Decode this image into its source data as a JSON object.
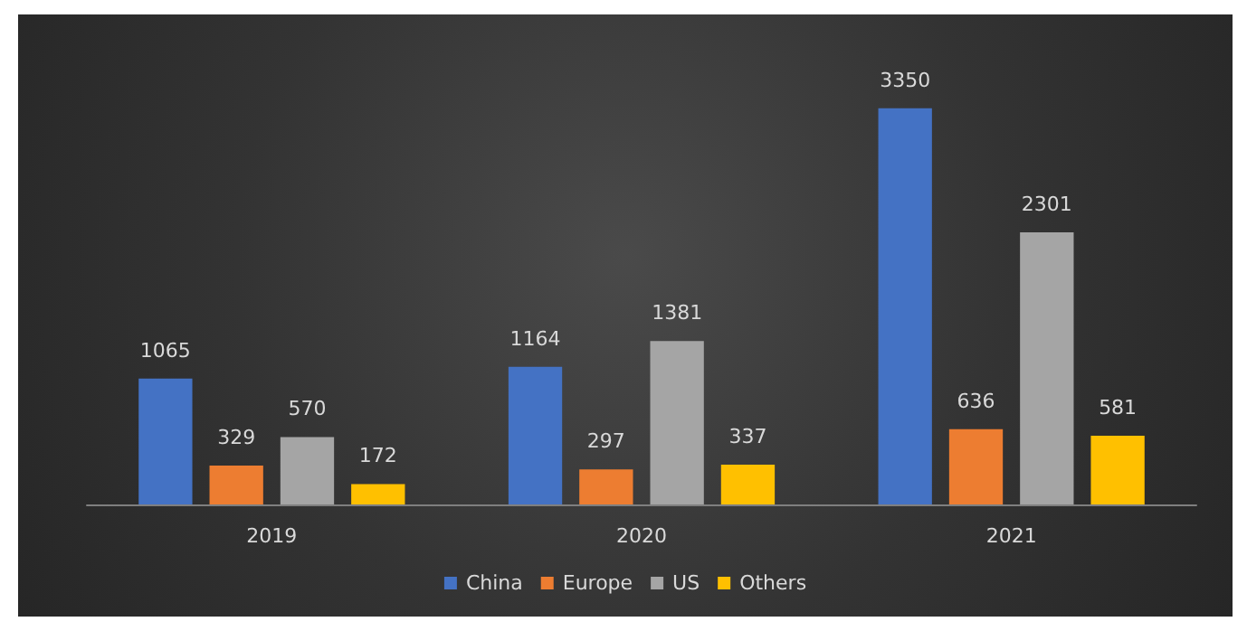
{
  "chart_data": {
    "type": "bar",
    "categories": [
      "2019",
      "2020",
      "2021"
    ],
    "series": [
      {
        "name": "China",
        "color": "#4472c4",
        "values": [
          1065,
          1164,
          3350
        ]
      },
      {
        "name": "Europe",
        "color": "#ed7d31",
        "values": [
          329,
          297,
          636
        ]
      },
      {
        "name": "US",
        "color": "#a5a5a5",
        "values": [
          570,
          1381,
          2301
        ]
      },
      {
        "name": "Others",
        "color": "#ffc000",
        "values": [
          172,
          337,
          581
        ]
      }
    ],
    "data_labels": true,
    "legend": "bottom",
    "grid": false
  }
}
